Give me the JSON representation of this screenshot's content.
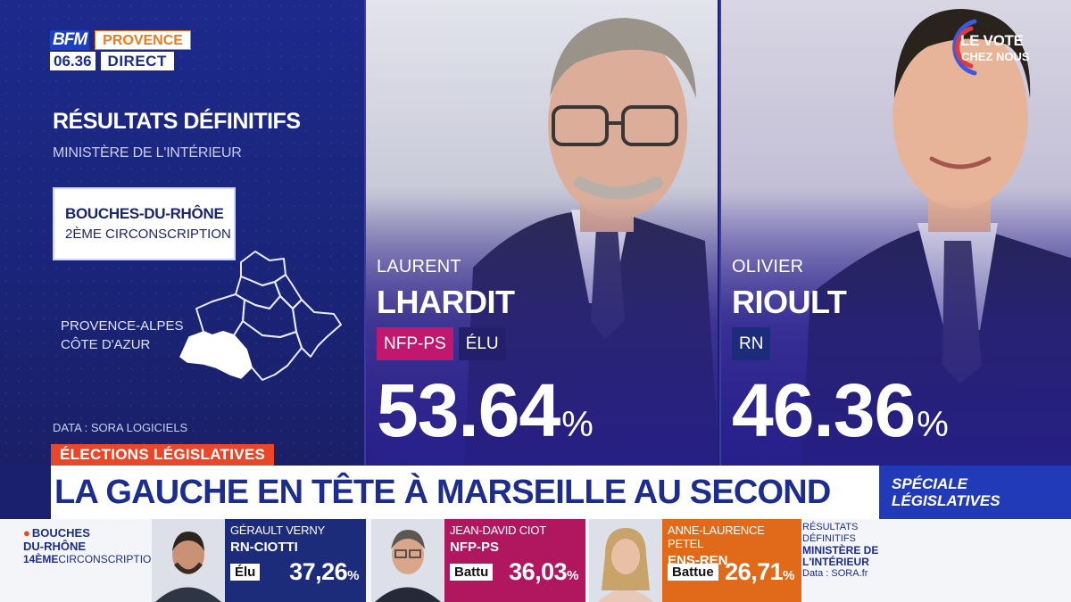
{
  "header": {
    "channel": "BFM",
    "time": "06.36",
    "region": "PROVENCE",
    "live": "DIRECT",
    "results_title": "RÉSULTATS DÉFINITIFS",
    "results_source": "MINISTÈRE DE L'INTÉRIEUR"
  },
  "constituency": {
    "department": "BOUCHES-DU-RHÔNE",
    "number": "2ÈME CIRCONSCRIPTION",
    "region_line1": "PROVENCE-ALPES",
    "region_line2": "CÔTE D'AZUR",
    "data_source": "DATA : SORA LOGICIELS"
  },
  "candidates": [
    {
      "first_name": "LAURENT",
      "last_name": "LHARDIT",
      "party": "NFP-PS",
      "status": "ÉLU",
      "percent": "53.64",
      "percent_sign": "%"
    },
    {
      "first_name": "OLIVIER",
      "last_name": "RIOULT",
      "party": "RN",
      "status": "",
      "percent": "46.36",
      "percent_sign": "%"
    }
  ],
  "vote_logo": {
    "line1": "LE VOTE",
    "line2": "CHEZ NOUS"
  },
  "banner": {
    "tag": "ÉLECTIONS LÉGISLATIVES",
    "headline": "LA GAUCHE EN TÊTE À MARSEILLE AU SECOND TOUR",
    "special_line1": "SPÉCIALE",
    "special_line2": "LÉGISLATIVES"
  },
  "ticker": {
    "dept_line1": "BOUCHES",
    "dept_line2": "DU-RHÔNE",
    "dept_line3_num": "14ÈME",
    "dept_line3_rest": "CIRCONSCRIPTION",
    "entries": [
      {
        "name": "GÉRAULT VERNY",
        "party": "RN-CIOTTI",
        "status": "Élu",
        "percent": "37,26",
        "sign": "%",
        "color": "#1c2b7a"
      },
      {
        "name": "JEAN-DAVID CIOT",
        "party": "NFP-PS",
        "status": "Battu",
        "percent": "36,03",
        "sign": "%",
        "color": "#b0175f"
      },
      {
        "name": "ANNE-LAURENCE PETEL",
        "party": "ENS-REN",
        "status": "Battue",
        "percent": "26,71",
        "sign": "%",
        "color": "#e06a1a"
      }
    ],
    "source_line1": "RÉSULTATS",
    "source_line2": "DÉFINITIFS",
    "source_line3": "MINISTÈRE DE",
    "source_line4": "L'INTÉRIEUR",
    "source_line5": "Data : SORA.fr"
  }
}
